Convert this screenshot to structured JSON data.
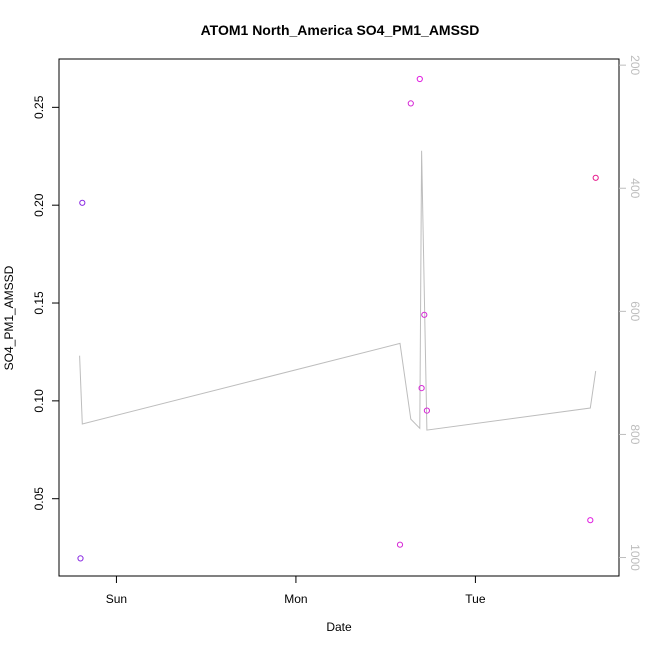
{
  "chart_data": {
    "type": "scatter",
    "title": "ATOM1 North_America SO4_PM1_AMSSD",
    "xlabel": "Date",
    "ylabel": "SO4_PM1_AMSSD",
    "x_tick_labels": [
      "Sun",
      "Mon",
      "Tue"
    ],
    "x_ticks_day": [
      1,
      2,
      3
    ],
    "xlim_day": [
      0.68,
      3.8
    ],
    "ylim": [
      0.0105,
      0.2747
    ],
    "y_ticks": [
      0.05,
      0.1,
      0.15,
      0.2,
      0.25
    ],
    "y_tick_labels": [
      "0.05",
      "0.10",
      "0.15",
      "0.20",
      "0.25"
    ],
    "secondary_axis": {
      "reversed": true,
      "ylim": [
        1030,
        190
      ],
      "ticks": [
        200,
        400,
        600,
        800,
        1000
      ],
      "tick_labels": [
        "200",
        "400",
        "600",
        "800",
        "1000"
      ]
    },
    "series": [
      {
        "kind": "points",
        "points": [
          {
            "x": 0.8,
            "y": 0.0195,
            "color": "#8a2be2"
          },
          {
            "x": 0.81,
            "y": 0.2012,
            "color": "#8a2be2"
          },
          {
            "x": 2.58,
            "y": 0.0265,
            "color": "#d62ad6"
          },
          {
            "x": 2.64,
            "y": 0.252,
            "color": "#d62ad6"
          },
          {
            "x": 2.69,
            "y": 0.2645,
            "color": "#e01ee0"
          },
          {
            "x": 2.7,
            "y": 0.1065,
            "color": "#d62ad6"
          },
          {
            "x": 2.715,
            "y": 0.144,
            "color": "#d62ad6"
          },
          {
            "x": 2.73,
            "y": 0.095,
            "color": "#d62ad6"
          },
          {
            "x": 3.64,
            "y": 0.039,
            "color": "#e01ee0"
          },
          {
            "x": 3.67,
            "y": 0.214,
            "color": "#e61a8d"
          }
        ]
      },
      {
        "kind": "line",
        "axis": "secondary",
        "color": "#bdbdbd",
        "points": [
          {
            "x": 0.795,
            "y": 672
          },
          {
            "x": 0.81,
            "y": 783
          },
          {
            "x": 2.58,
            "y": 652
          },
          {
            "x": 2.64,
            "y": 775
          },
          {
            "x": 2.69,
            "y": 790
          },
          {
            "x": 2.7,
            "y": 339
          },
          {
            "x": 2.73,
            "y": 793
          },
          {
            "x": 3.64,
            "y": 757
          },
          {
            "x": 3.67,
            "y": 697
          }
        ]
      }
    ]
  }
}
